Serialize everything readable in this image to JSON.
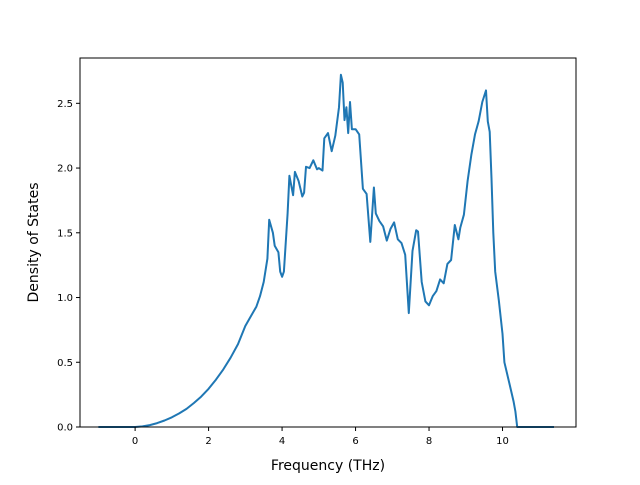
{
  "chart_data": {
    "type": "line",
    "title": "",
    "xlabel": "Frequency (THz)",
    "ylabel": "Density of States",
    "xlim": [
      -1.5,
      12.0
    ],
    "ylim": [
      0.0,
      2.85
    ],
    "xticks": [
      0,
      2,
      4,
      6,
      8,
      10
    ],
    "yticks": [
      0.0,
      0.5,
      1.0,
      1.5,
      2.0,
      2.5
    ],
    "xtick_labels": [
      "0",
      "2",
      "4",
      "6",
      "8",
      "10"
    ],
    "ytick_labels": [
      "0.0",
      "0.5",
      "1.0",
      "1.5",
      "2.0",
      "2.5"
    ],
    "grid": false,
    "legend": "none",
    "colors": {
      "series": "#1f77b4",
      "axes": "#000000",
      "background": "#ffffff"
    },
    "series": [
      {
        "x": [
          -1.0,
          0.0,
          0.2,
          0.4,
          0.6,
          0.8,
          1.0,
          1.2,
          1.4,
          1.6,
          1.8,
          2.0,
          2.2,
          2.4,
          2.6,
          2.8,
          3.0,
          3.1,
          3.3,
          3.4,
          3.5,
          3.6,
          3.65,
          3.75,
          3.8,
          3.9,
          3.95,
          4.0,
          4.05,
          4.15,
          4.2,
          4.3,
          4.35,
          4.45,
          4.55,
          4.6,
          4.65,
          4.75,
          4.85,
          4.95,
          5.0,
          5.1,
          5.15,
          5.25,
          5.35,
          5.45,
          5.55,
          5.6,
          5.65,
          5.7,
          5.75,
          5.8,
          5.85,
          5.9,
          6.0,
          6.1,
          6.2,
          6.3,
          6.4,
          6.5,
          6.55,
          6.65,
          6.75,
          6.85,
          6.95,
          7.05,
          7.15,
          7.25,
          7.35,
          7.45,
          7.55,
          7.65,
          7.7,
          7.8,
          7.9,
          8.0,
          8.1,
          8.2,
          8.3,
          8.4,
          8.5,
          8.6,
          8.7,
          8.8,
          8.85,
          8.95,
          9.05,
          9.15,
          9.25,
          9.35,
          9.45,
          9.55,
          9.6,
          9.65,
          9.7,
          9.75,
          9.8,
          9.9,
          10.0,
          10.05,
          10.2,
          10.3,
          10.35,
          10.4,
          11.4
        ],
        "y": [
          0.0,
          0.0,
          0.005,
          0.015,
          0.03,
          0.05,
          0.075,
          0.105,
          0.14,
          0.185,
          0.235,
          0.295,
          0.365,
          0.445,
          0.535,
          0.64,
          0.78,
          0.83,
          0.93,
          1.01,
          1.12,
          1.3,
          1.6,
          1.5,
          1.4,
          1.35,
          1.2,
          1.16,
          1.2,
          1.65,
          1.94,
          1.79,
          1.97,
          1.9,
          1.78,
          1.81,
          2.01,
          2.0,
          2.06,
          1.99,
          2.0,
          1.98,
          2.23,
          2.27,
          2.13,
          2.25,
          2.47,
          2.72,
          2.66,
          2.37,
          2.47,
          2.27,
          2.51,
          2.3,
          2.3,
          2.26,
          1.84,
          1.8,
          1.43,
          1.85,
          1.65,
          1.59,
          1.55,
          1.44,
          1.53,
          1.58,
          1.45,
          1.42,
          1.33,
          0.88,
          1.36,
          1.52,
          1.51,
          1.12,
          0.97,
          0.94,
          1.01,
          1.05,
          1.14,
          1.11,
          1.26,
          1.29,
          1.56,
          1.45,
          1.54,
          1.64,
          1.9,
          2.1,
          2.26,
          2.36,
          2.51,
          2.6,
          2.36,
          2.28,
          1.92,
          1.5,
          1.2,
          0.98,
          0.72,
          0.5,
          0.32,
          0.2,
          0.12,
          0.0,
          0.0
        ]
      }
    ]
  }
}
